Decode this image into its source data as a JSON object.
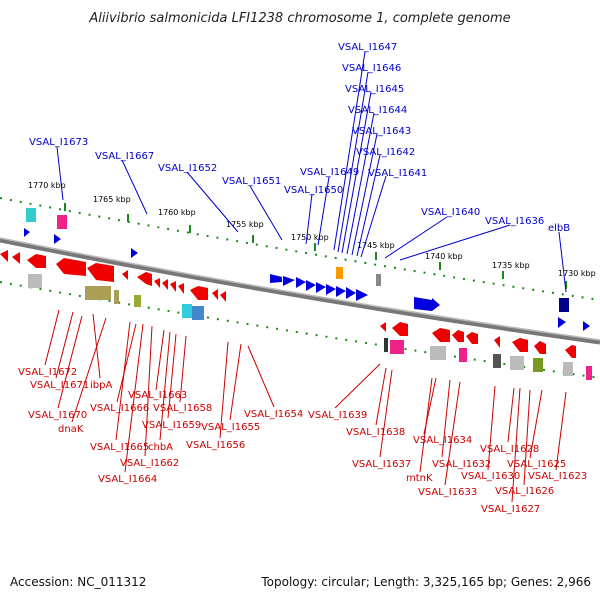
{
  "title": "Aliivibrio salmonicida LFI1238 chromosome 1, complete genome",
  "footer": {
    "accession": "Accession: NC_011312",
    "summary": "Topology: circular; Length: 3,325,165 bp; Genes: 2,966"
  },
  "scale_labels": [
    "1770 kbp",
    "1765 kbp",
    "1760 kbp",
    "1755 kbp",
    "1750 kbp",
    "1745 kbp",
    "1740 kbp",
    "1735 kbp",
    "1730 kbp"
  ],
  "top_genes": [
    "VSAL_I1647",
    "VSAL_I1646",
    "VSAL_I1645",
    "VSAL_I1644",
    "VSAL_I1643",
    "VSAL_I1642",
    "VSAL_I1641",
    "VSAL_I1673",
    "VSAL_I1667",
    "VSAL_I1652",
    "VSAL_I1651",
    "VSAL_I1649",
    "VSAL_I1650",
    "VSAL_I1640",
    "VSAL_I1636",
    "elbB"
  ],
  "bottom_genes": [
    "VSAL_I1672",
    "VSAL_I1671",
    "ibpA",
    "VSAL_I1670",
    "dnaK",
    "VSAL_I1663",
    "VSAL_I1666",
    "VSAL_I1658",
    "VSAL_I1659",
    "VSAL_I1665",
    "chbA",
    "VSAL_I1662",
    "VSAL_I1664",
    "VSAL_I1656",
    "VSAL_I1655",
    "VSAL_I1654",
    "VSAL_I1639",
    "VSAL_I1638",
    "VSAL_I1637",
    "VSAL_I1634",
    "VSAL_I1632",
    "mtnK",
    "VSAL_I1633",
    "VSAL_I1630",
    "VSAL_I1628",
    "VSAL_I1625",
    "VSAL_I1626",
    "VSAL_I1623",
    "VSAL_I1627"
  ],
  "colors": {
    "forward_strand": "#0000cc",
    "reverse_strand": "#cc0000",
    "backbone": "#888888",
    "tick": "#228b22"
  }
}
